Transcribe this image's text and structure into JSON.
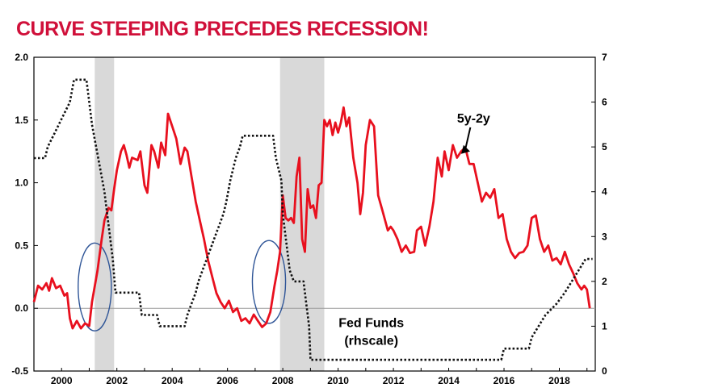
{
  "title": "CURVE STEEPING PRECEDES RECESSION!",
  "colors": {
    "title": "#d0103a",
    "spread_line": "#e8101e",
    "fed_funds_line": "#111111",
    "recession_shade": "#d9d9d9",
    "zero_line": "#9a9a9a",
    "ellipse": "#2f5597"
  },
  "chart_data": {
    "type": "line",
    "title": "CURVE STEEPING PRECEDES RECESSION!",
    "xlim": [
      1999.0,
      2019.3
    ],
    "ylim_left": [
      -0.5,
      2.0
    ],
    "ylim_right": [
      0,
      7
    ],
    "x_ticks": [
      2000,
      2002,
      2004,
      2006,
      2008,
      2010,
      2012,
      2014,
      2016,
      2018
    ],
    "y_left_ticks": [
      "2.0",
      "1.5",
      "1.0",
      "0.5",
      "0.0",
      "-0.5"
    ],
    "y_left_tick_values": [
      2.0,
      1.5,
      1.0,
      0.5,
      0.0,
      -0.5
    ],
    "y_right_ticks": [
      "7",
      "6",
      "5",
      "4",
      "3",
      "2",
      "1",
      "0"
    ],
    "y_right_tick_values": [
      7,
      6,
      5,
      4,
      3,
      2,
      1,
      0
    ],
    "recessions": [
      [
        2001.2,
        2001.9
      ],
      [
        2007.9,
        2009.5
      ]
    ],
    "highlight_ellipses": [
      {
        "cx": 2001.2,
        "cy": 0.17,
        "rx_years": 0.6,
        "ry": 0.35
      },
      {
        "cx": 2007.5,
        "cy": 0.21,
        "rx_years": 0.6,
        "ry": 0.33
      }
    ],
    "annotations": [
      {
        "text": "5y-2y",
        "x": 2014.9,
        "y": 1.48
      },
      {
        "text": "Fed Funds",
        "x": 2011.2,
        "y": -0.15
      },
      {
        "text": "(rhscale)",
        "x": 2011.2,
        "y": -0.29
      }
    ],
    "series": [
      {
        "name": "5y-2y",
        "axis": "left",
        "points": [
          [
            1999.0,
            0.05
          ],
          [
            1999.15,
            0.18
          ],
          [
            1999.3,
            0.15
          ],
          [
            1999.45,
            0.2
          ],
          [
            1999.55,
            0.14
          ],
          [
            1999.65,
            0.24
          ],
          [
            1999.8,
            0.16
          ],
          [
            1999.95,
            0.18
          ],
          [
            2000.1,
            0.1
          ],
          [
            2000.2,
            0.12
          ],
          [
            2000.3,
            -0.08
          ],
          [
            2000.4,
            -0.16
          ],
          [
            2000.55,
            -0.1
          ],
          [
            2000.7,
            -0.16
          ],
          [
            2000.85,
            -0.12
          ],
          [
            2001.0,
            -0.14
          ],
          [
            2001.1,
            0.05
          ],
          [
            2001.3,
            0.3
          ],
          [
            2001.45,
            0.55
          ],
          [
            2001.55,
            0.7
          ],
          [
            2001.7,
            0.8
          ],
          [
            2001.8,
            0.78
          ],
          [
            2001.9,
            0.95
          ],
          [
            2002.0,
            1.1
          ],
          [
            2002.15,
            1.25
          ],
          [
            2002.25,
            1.3
          ],
          [
            2002.35,
            1.22
          ],
          [
            2002.45,
            1.12
          ],
          [
            2002.55,
            1.2
          ],
          [
            2002.75,
            1.18
          ],
          [
            2002.85,
            1.25
          ],
          [
            2003.0,
            0.98
          ],
          [
            2003.1,
            0.92
          ],
          [
            2003.25,
            1.3
          ],
          [
            2003.35,
            1.25
          ],
          [
            2003.5,
            1.12
          ],
          [
            2003.6,
            1.32
          ],
          [
            2003.75,
            1.22
          ],
          [
            2003.85,
            1.55
          ],
          [
            2004.0,
            1.45
          ],
          [
            2004.15,
            1.35
          ],
          [
            2004.3,
            1.15
          ],
          [
            2004.45,
            1.28
          ],
          [
            2004.55,
            1.25
          ],
          [
            2004.7,
            1.05
          ],
          [
            2004.85,
            0.85
          ],
          [
            2005.0,
            0.7
          ],
          [
            2005.15,
            0.55
          ],
          [
            2005.3,
            0.38
          ],
          [
            2005.45,
            0.25
          ],
          [
            2005.6,
            0.12
          ],
          [
            2005.75,
            0.05
          ],
          [
            2005.9,
            0.0
          ],
          [
            2006.05,
            0.06
          ],
          [
            2006.2,
            -0.03
          ],
          [
            2006.35,
            0.0
          ],
          [
            2006.5,
            -0.1
          ],
          [
            2006.65,
            -0.08
          ],
          [
            2006.8,
            -0.12
          ],
          [
            2006.95,
            -0.05
          ],
          [
            2007.1,
            -0.1
          ],
          [
            2007.25,
            -0.15
          ],
          [
            2007.4,
            -0.12
          ],
          [
            2007.55,
            -0.03
          ],
          [
            2007.7,
            0.18
          ],
          [
            2007.8,
            0.3
          ],
          [
            2007.9,
            0.45
          ],
          [
            2008.0,
            0.9
          ],
          [
            2008.1,
            0.72
          ],
          [
            2008.2,
            0.7
          ],
          [
            2008.3,
            0.72
          ],
          [
            2008.4,
            0.68
          ],
          [
            2008.5,
            1.05
          ],
          [
            2008.6,
            1.2
          ],
          [
            2008.7,
            0.55
          ],
          [
            2008.8,
            0.45
          ],
          [
            2008.9,
            0.95
          ],
          [
            2009.0,
            0.8
          ],
          [
            2009.1,
            0.82
          ],
          [
            2009.2,
            0.72
          ],
          [
            2009.3,
            0.98
          ],
          [
            2009.4,
            1.0
          ],
          [
            2009.5,
            1.5
          ],
          [
            2009.6,
            1.45
          ],
          [
            2009.7,
            1.5
          ],
          [
            2009.8,
            1.38
          ],
          [
            2009.9,
            1.48
          ],
          [
            2010.0,
            1.4
          ],
          [
            2010.1,
            1.48
          ],
          [
            2010.2,
            1.6
          ],
          [
            2010.3,
            1.45
          ],
          [
            2010.4,
            1.52
          ],
          [
            2010.55,
            1.2
          ],
          [
            2010.7,
            1.0
          ],
          [
            2010.8,
            0.75
          ],
          [
            2010.9,
            0.92
          ],
          [
            2011.0,
            1.3
          ],
          [
            2011.15,
            1.5
          ],
          [
            2011.3,
            1.45
          ],
          [
            2011.45,
            0.9
          ],
          [
            2011.6,
            0.78
          ],
          [
            2011.7,
            0.7
          ],
          [
            2011.8,
            0.62
          ],
          [
            2011.9,
            0.65
          ],
          [
            2012.0,
            0.62
          ],
          [
            2012.15,
            0.55
          ],
          [
            2012.3,
            0.45
          ],
          [
            2012.45,
            0.5
          ],
          [
            2012.6,
            0.44
          ],
          [
            2012.75,
            0.45
          ],
          [
            2012.85,
            0.62
          ],
          [
            2013.0,
            0.65
          ],
          [
            2013.15,
            0.5
          ],
          [
            2013.3,
            0.65
          ],
          [
            2013.45,
            0.85
          ],
          [
            2013.6,
            1.2
          ],
          [
            2013.75,
            1.05
          ],
          [
            2013.85,
            1.25
          ],
          [
            2014.0,
            1.1
          ],
          [
            2014.15,
            1.3
          ],
          [
            2014.3,
            1.2
          ],
          [
            2014.45,
            1.25
          ],
          [
            2014.6,
            1.28
          ],
          [
            2014.75,
            1.15
          ],
          [
            2014.9,
            1.15
          ],
          [
            2015.05,
            1.0
          ],
          [
            2015.2,
            0.85
          ],
          [
            2015.35,
            0.92
          ],
          [
            2015.5,
            0.88
          ],
          [
            2015.65,
            0.95
          ],
          [
            2015.8,
            0.72
          ],
          [
            2015.95,
            0.75
          ],
          [
            2016.1,
            0.55
          ],
          [
            2016.25,
            0.45
          ],
          [
            2016.4,
            0.4
          ],
          [
            2016.55,
            0.44
          ],
          [
            2016.7,
            0.45
          ],
          [
            2016.85,
            0.5
          ],
          [
            2017.0,
            0.72
          ],
          [
            2017.15,
            0.74
          ],
          [
            2017.3,
            0.55
          ],
          [
            2017.45,
            0.45
          ],
          [
            2017.6,
            0.5
          ],
          [
            2017.75,
            0.38
          ],
          [
            2017.9,
            0.4
          ],
          [
            2018.05,
            0.35
          ],
          [
            2018.2,
            0.45
          ],
          [
            2018.35,
            0.35
          ],
          [
            2018.5,
            0.28
          ],
          [
            2018.65,
            0.2
          ],
          [
            2018.8,
            0.15
          ],
          [
            2018.9,
            0.18
          ],
          [
            2019.0,
            0.15
          ],
          [
            2019.1,
            0.0
          ]
        ]
      },
      {
        "name": "Fed Funds",
        "axis": "right",
        "points": [
          [
            1999.0,
            4.75
          ],
          [
            1999.4,
            4.75
          ],
          [
            1999.5,
            5.0
          ],
          [
            1999.7,
            5.25
          ],
          [
            1999.9,
            5.5
          ],
          [
            2000.1,
            5.75
          ],
          [
            2000.3,
            6.0
          ],
          [
            2000.45,
            6.5
          ],
          [
            2000.9,
            6.5
          ],
          [
            2001.0,
            6.0
          ],
          [
            2001.1,
            5.5
          ],
          [
            2001.25,
            5.0
          ],
          [
            2001.4,
            4.5
          ],
          [
            2001.55,
            4.0
          ],
          [
            2001.65,
            3.5
          ],
          [
            2001.75,
            3.0
          ],
          [
            2001.85,
            2.5
          ],
          [
            2001.95,
            1.75
          ],
          [
            2002.8,
            1.75
          ],
          [
            2002.9,
            1.25
          ],
          [
            2003.45,
            1.25
          ],
          [
            2003.55,
            1.0
          ],
          [
            2004.45,
            1.0
          ],
          [
            2004.55,
            1.25
          ],
          [
            2004.7,
            1.5
          ],
          [
            2004.85,
            1.75
          ],
          [
            2004.95,
            2.0
          ],
          [
            2005.1,
            2.25
          ],
          [
            2005.25,
            2.5
          ],
          [
            2005.4,
            2.75
          ],
          [
            2005.55,
            3.0
          ],
          [
            2005.7,
            3.25
          ],
          [
            2005.85,
            3.5
          ],
          [
            2005.95,
            3.75
          ],
          [
            2006.1,
            4.25
          ],
          [
            2006.3,
            4.75
          ],
          [
            2006.45,
            5.0
          ],
          [
            2006.55,
            5.25
          ],
          [
            2007.65,
            5.25
          ],
          [
            2007.75,
            4.75
          ],
          [
            2007.85,
            4.5
          ],
          [
            2007.95,
            4.25
          ],
          [
            2008.0,
            3.5
          ],
          [
            2008.1,
            3.0
          ],
          [
            2008.25,
            2.25
          ],
          [
            2008.4,
            2.0
          ],
          [
            2008.75,
            2.0
          ],
          [
            2008.85,
            1.5
          ],
          [
            2008.95,
            1.0
          ],
          [
            2009.0,
            0.25
          ],
          [
            2015.9,
            0.25
          ],
          [
            2016.0,
            0.5
          ],
          [
            2016.9,
            0.5
          ],
          [
            2017.0,
            0.75
          ],
          [
            2017.25,
            1.0
          ],
          [
            2017.5,
            1.25
          ],
          [
            2017.9,
            1.5
          ],
          [
            2018.2,
            1.75
          ],
          [
            2018.45,
            2.0
          ],
          [
            2018.7,
            2.25
          ],
          [
            2018.95,
            2.5
          ],
          [
            2019.2,
            2.5
          ]
        ]
      }
    ]
  }
}
